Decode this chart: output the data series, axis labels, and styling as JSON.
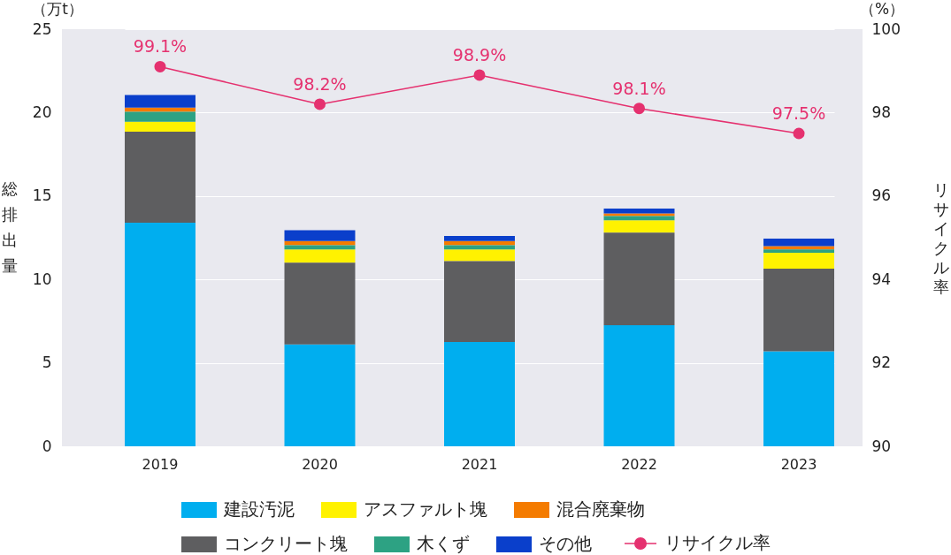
{
  "chart_data": {
    "type": "bar",
    "stacked": true,
    "categories": [
      "2019",
      "2020",
      "2021",
      "2022",
      "2023"
    ],
    "series": [
      {
        "name": "建設汚泥",
        "color": "#00aeef",
        "values": [
          13.4,
          6.1,
          6.25,
          7.25,
          5.7
        ]
      },
      {
        "name": "コンクリート塊",
        "color": "#5e5e60",
        "values": [
          5.45,
          4.9,
          4.85,
          5.55,
          4.95
        ]
      },
      {
        "name": "アスファルト塊",
        "color": "#fff200",
        "values": [
          0.6,
          0.8,
          0.7,
          0.75,
          0.95
        ]
      },
      {
        "name": "木くず",
        "color": "#2da283",
        "values": [
          0.6,
          0.25,
          0.25,
          0.25,
          0.2
        ]
      },
      {
        "name": "混合廃棄物",
        "color": "#f47b00",
        "values": [
          0.25,
          0.25,
          0.25,
          0.15,
          0.2
        ]
      },
      {
        "name": "その他",
        "color": "#0a3fcb",
        "values": [
          0.75,
          0.65,
          0.3,
          0.3,
          0.45
        ]
      },
      {
        "name": "リサイクル率",
        "type": "line",
        "axis": "y2",
        "color": "#e5316f",
        "values": [
          99.1,
          98.2,
          98.9,
          98.1,
          97.5
        ],
        "value_labels": [
          "99.1%",
          "98.2%",
          "98.9%",
          "98.1%",
          "97.5%"
        ]
      }
    ],
    "ylabel": "総排出量",
    "y2label": "リサイクル率",
    "ylim": [
      0,
      25
    ],
    "yticks": [
      0,
      5,
      10,
      15,
      20,
      25
    ],
    "y2lim": [
      90,
      100
    ],
    "y2ticks": [
      90,
      92,
      94,
      96,
      98,
      100
    ],
    "grid": "y",
    "legend": "bottom",
    "marker": "circle",
    "annotations": [
      "（万t）",
      "（%）"
    ]
  }
}
